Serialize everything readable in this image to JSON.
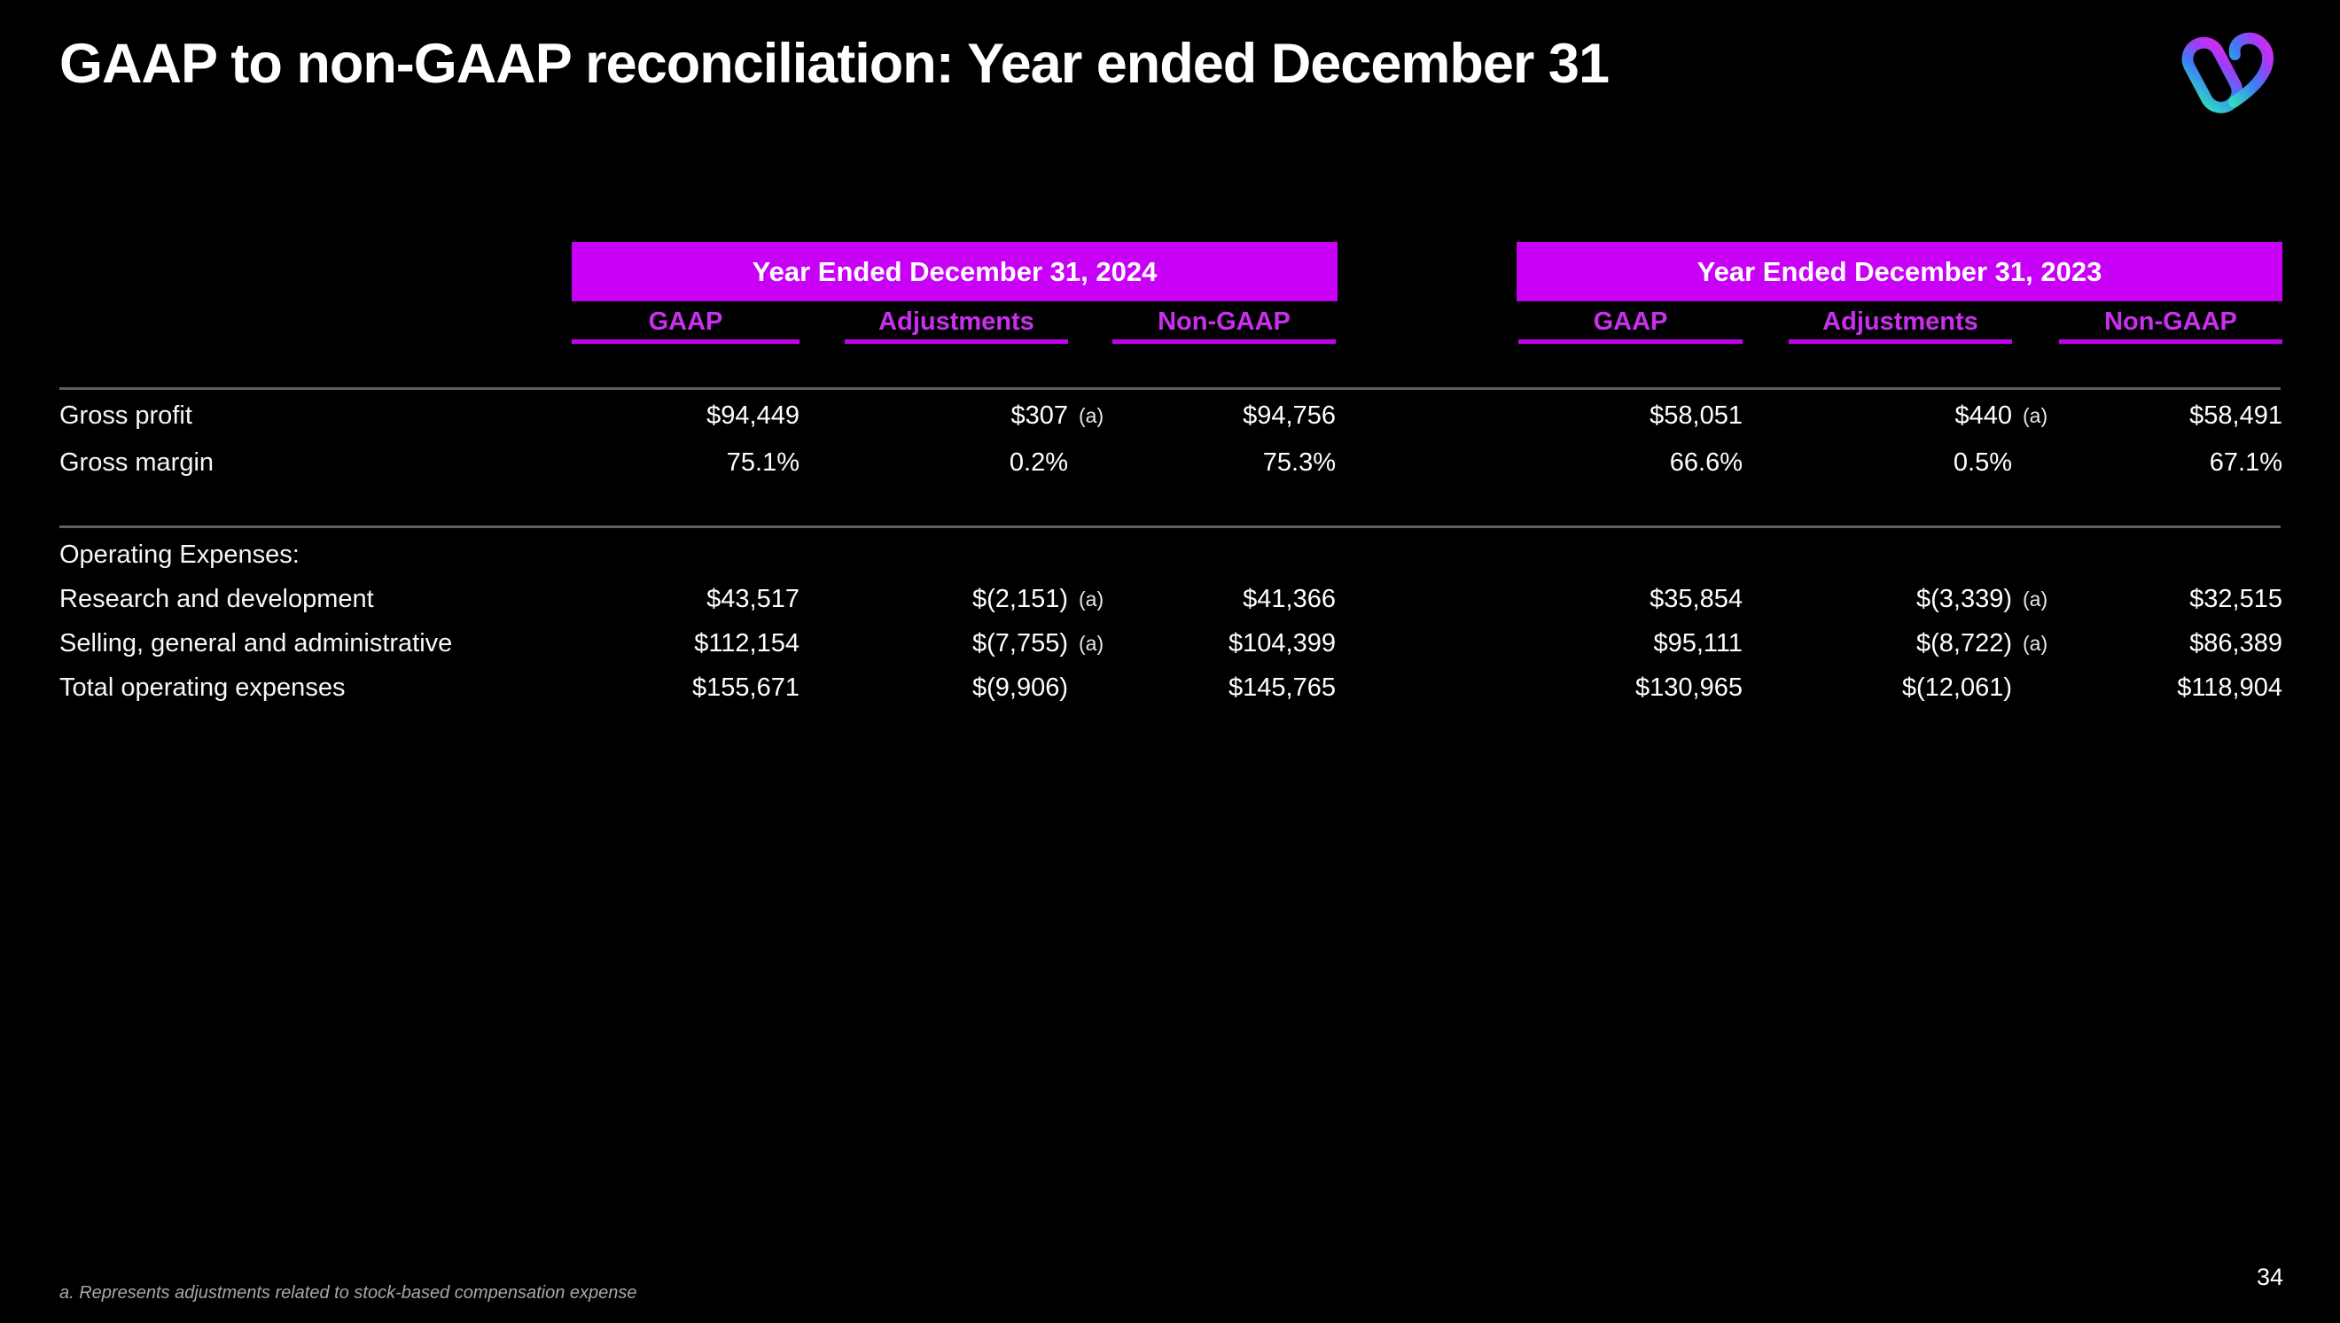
{
  "slide": {
    "title": "GAAP to non-GAAP reconciliation: Year ended December 31",
    "footnote": "a. Represents adjustments related to stock-based compensation expense",
    "page_number": "34"
  },
  "logo": {
    "name": "heart-loop-logo",
    "gradient_colors": [
      "#2FD9C2",
      "#3E7BF5",
      "#D52BF2"
    ]
  },
  "colors": {
    "background": "#000000",
    "accent_magenta": "#C800F5",
    "column_header_magenta": "#CA2FF0",
    "rule_gray": "#606060",
    "footnote_gray": "#A8A8A8"
  },
  "table": {
    "groups": [
      {
        "label": "Year Ended December 31, 2024"
      },
      {
        "label": "Year Ended December 31, 2023"
      }
    ],
    "columns": [
      "GAAP",
      "Adjustments",
      "Non-GAAP",
      "GAAP",
      "Adjustments",
      "Non-GAAP"
    ],
    "rows": [
      {
        "label": "Gross profit",
        "values": [
          "$94,449",
          "$307",
          "$94,756",
          "$58,051",
          "$440",
          "$58,491"
        ],
        "notes": [
          "",
          "(a)",
          "",
          "",
          "(a)",
          ""
        ]
      },
      {
        "label": "Gross margin",
        "values": [
          "75.1%",
          "0.2%",
          "75.3%",
          "66.6%",
          "0.5%",
          "67.1%"
        ],
        "notes": [
          "",
          "",
          "",
          "",
          "",
          ""
        ]
      },
      {
        "label": "Operating Expenses:",
        "section": true,
        "values": [
          "",
          "",
          "",
          "",
          "",
          ""
        ],
        "notes": [
          "",
          "",
          "",
          "",
          "",
          ""
        ]
      },
      {
        "label": "Research and development",
        "values": [
          "$43,517",
          "$(2,151)",
          "$41,366",
          "$35,854",
          "$(3,339)",
          "$32,515"
        ],
        "notes": [
          "",
          "(a)",
          "",
          "",
          "(a)",
          ""
        ]
      },
      {
        "label": "Selling, general and administrative",
        "values": [
          "$112,154",
          "$(7,755)",
          "$104,399",
          "$95,111",
          "$(8,722)",
          "$86,389"
        ],
        "notes": [
          "",
          "(a)",
          "",
          "",
          "(a)",
          ""
        ]
      },
      {
        "label": "Total operating expenses",
        "values": [
          "$155,671",
          "$(9,906)",
          "$145,765",
          "$130,965",
          "$(12,061)",
          "$118,904"
        ],
        "notes": [
          "",
          "",
          "",
          "",
          "",
          ""
        ]
      }
    ]
  }
}
